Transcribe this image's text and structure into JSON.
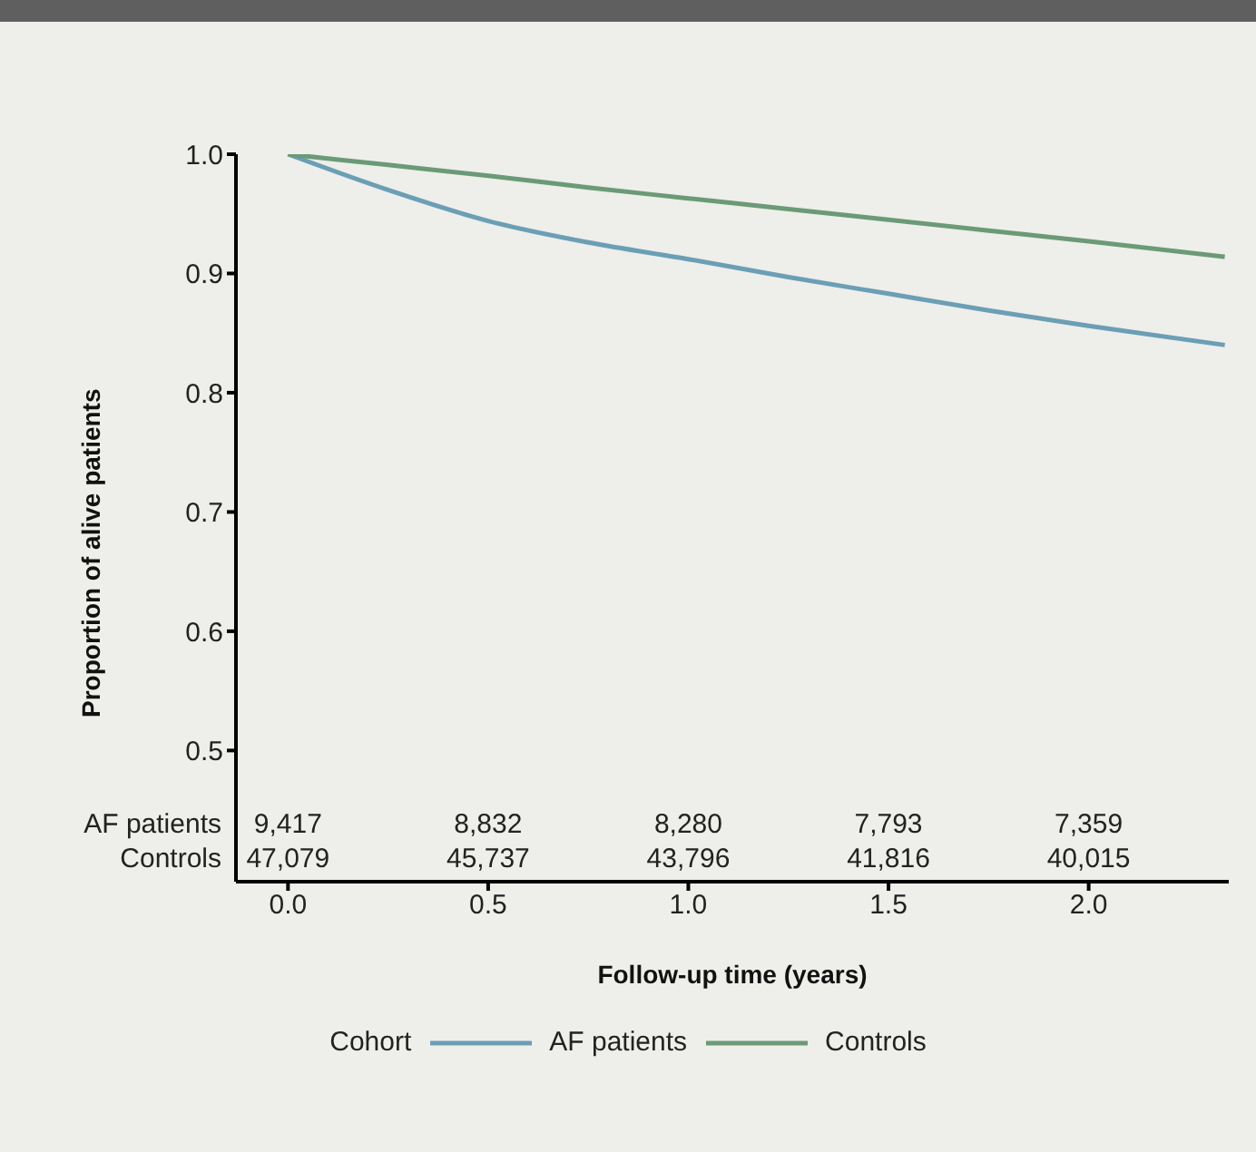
{
  "chart_data": {
    "type": "line",
    "xlabel": "Follow-up time (years)",
    "ylabel": "Proportion of alive patients",
    "legend_title": "Cohort",
    "legend": "bottom",
    "grid": false,
    "marker": "none",
    "line_style": "solid",
    "xlim": [
      -0.13,
      2.35
    ],
    "xticks": [
      {
        "value": 0,
        "label": "0.0"
      },
      0.5,
      {
        "value": 1,
        "label": "1.0"
      },
      1.5,
      {
        "value": 2,
        "label": "2.0"
      }
    ],
    "ylim": [
      0.39,
      1.0
    ],
    "yticks": [
      0.5,
      0.6,
      0.7,
      0.8,
      0.9,
      {
        "value": 1,
        "label": "1.0"
      }
    ],
    "x": [
      0,
      0.25,
      0.5,
      0.75,
      1.0,
      1.25,
      1.5,
      1.75,
      2.0,
      2.34
    ],
    "series": [
      {
        "name": "AF patients",
        "color": "#6a9fb5",
        "values": [
          1.0,
          0.97,
          0.944,
          0.926,
          0.912,
          0.897,
          0.883,
          0.869,
          0.856,
          0.84
        ]
      },
      {
        "name": "Controls",
        "color": "#6b9a76",
        "values": [
          1.0,
          0.991,
          0.982,
          0.972,
          0.963,
          0.954,
          0.945,
          0.936,
          0.927,
          0.914
        ]
      }
    ],
    "annotations": [
      "AF patients",
      "9,417",
      "8,832",
      "8,280",
      "7,793",
      "7,359",
      "Controls",
      "47,079",
      "45,737",
      "43,796",
      "41,816",
      "40,015"
    ]
  }
}
